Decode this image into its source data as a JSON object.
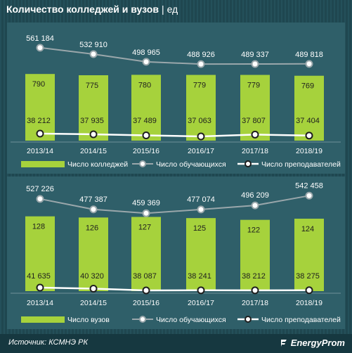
{
  "title": "Количество колледжей и вузов",
  "title_sep": "|",
  "title_unit": "ед",
  "source": "Источник: КСМНЭ РК",
  "logo": "EnergyProm",
  "colors": {
    "bar": "#a6d23c",
    "students_line": "#9aa7ab",
    "teachers_line": "#ffffff",
    "panel": "#2f5f69",
    "background": "#214a52"
  },
  "chart_data": [
    {
      "type": "bar",
      "categories": [
        "2013/14",
        "2014/15",
        "2015/16",
        "2016/17",
        "2017/18",
        "2018/19"
      ],
      "series": [
        {
          "name": "Число колледжей",
          "type": "bar",
          "values": [
            790,
            775,
            780,
            779,
            779,
            769
          ]
        },
        {
          "name": "Число обучающихся",
          "type": "line",
          "values": [
            561184,
            532910,
            498965,
            488926,
            489337,
            489818
          ]
        },
        {
          "name": "Число преподавателей",
          "type": "line",
          "values": [
            38212,
            37935,
            37489,
            37063,
            37807,
            37404
          ]
        }
      ],
      "value_labels": {
        "bars": [
          "790",
          "775",
          "780",
          "779",
          "779",
          "769"
        ],
        "students": [
          "561 184",
          "532 910",
          "498 965",
          "488 926",
          "489 337",
          "489 818"
        ],
        "teachers": [
          "38 212",
          "37 935",
          "37 489",
          "37 063",
          "37 807",
          "37 404"
        ]
      },
      "legend": [
        "Число колледжей",
        "Число обучающихся",
        "Число преподавателей"
      ],
      "legend_position": "bottom"
    },
    {
      "type": "bar",
      "categories": [
        "2013/14",
        "2014/15",
        "2015/16",
        "2016/17",
        "2017/18",
        "2018/19"
      ],
      "series": [
        {
          "name": "Число вузов",
          "type": "bar",
          "values": [
            128,
            126,
            127,
            125,
            122,
            124
          ]
        },
        {
          "name": "Число обучающихся",
          "type": "line",
          "values": [
            527226,
            477387,
            459369,
            477074,
            496209,
            542458
          ]
        },
        {
          "name": "Число преподавателей",
          "type": "line",
          "values": [
            41635,
            40320,
            38087,
            38241,
            38212,
            38275
          ]
        }
      ],
      "value_labels": {
        "bars": [
          "128",
          "126",
          "127",
          "125",
          "122",
          "124"
        ],
        "students": [
          "527 226",
          "477 387",
          "459 369",
          "477 074",
          "496 209",
          "542 458"
        ],
        "teachers": [
          "41 635",
          "40 320",
          "38 087",
          "38 241",
          "38 212",
          "38 275"
        ]
      },
      "legend": [
        "Число вузов",
        "Число обучающихся",
        "Число преподавателей"
      ],
      "legend_position": "bottom"
    }
  ]
}
